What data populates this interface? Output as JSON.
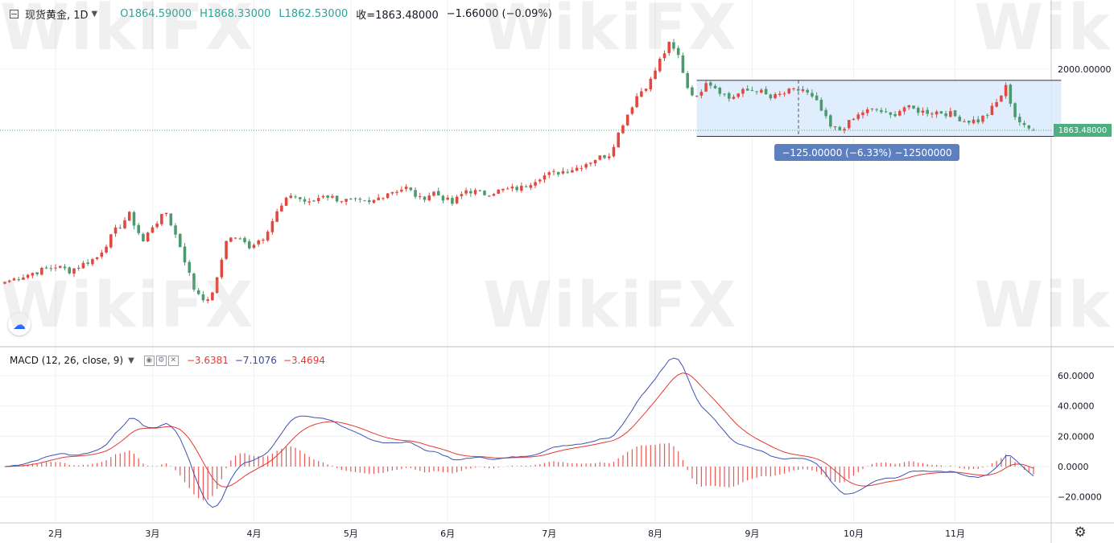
{
  "header": {
    "symbol": "现货黄金, 1D",
    "open": "O1864.59000",
    "high": "H1868.33000",
    "low": "L1862.53000",
    "close": "收=1863.48000",
    "change": "−1.66000 (−0.09%)"
  },
  "macd_header": {
    "label": "MACD (12, 26, close, 9)",
    "hist": "−3.6381",
    "macd": "−7.1076",
    "signal": "−3.4694"
  },
  "measure": {
    "label": "−125.00000 (−6.33%) −12500000",
    "box_top": 1975,
    "box_bottom": 1850,
    "from_index": 150,
    "to_index": 229
  },
  "last_price_label": "1863.48000",
  "watermark_text": "WikiFX",
  "colors": {
    "up": "#e0493f",
    "down": "#4a9a6e",
    "macd_line": "#3f51b5",
    "signal_line": "#e53935",
    "hist": "#e53935",
    "measure_fill": "#dbeafb",
    "measure_label_bg": "#5b7fbf"
  },
  "chart_data": [
    {
      "type": "candlestick",
      "title": "现货黄金",
      "x_axis_ticks": [
        {
          "label": "2月",
          "index": 11
        },
        {
          "label": "3月",
          "index": 32
        },
        {
          "label": "4月",
          "index": 54
        },
        {
          "label": "5月",
          "index": 75
        },
        {
          "label": "6月",
          "index": 96
        },
        {
          "label": "7月",
          "index": 118
        },
        {
          "label": "8月",
          "index": 141
        },
        {
          "label": "9月",
          "index": 162
        },
        {
          "label": "10月",
          "index": 184
        },
        {
          "label": "11月",
          "index": 206
        }
      ],
      "y_axis_ticks": [
        {
          "label": "2000.00000",
          "value": 2000
        }
      ],
      "last_price": 1863.48,
      "anchors": [
        [
          0,
          1525
        ],
        [
          6,
          1545
        ],
        [
          11,
          1560
        ],
        [
          14,
          1550
        ],
        [
          20,
          1580
        ],
        [
          24,
          1640
        ],
        [
          27,
          1675
        ],
        [
          30,
          1615
        ],
        [
          32,
          1650
        ],
        [
          35,
          1680
        ],
        [
          38,
          1605
        ],
        [
          41,
          1510
        ],
        [
          44,
          1480
        ],
        [
          46,
          1530
        ],
        [
          48,
          1620
        ],
        [
          50,
          1625
        ],
        [
          53,
          1605
        ],
        [
          56,
          1625
        ],
        [
          59,
          1680
        ],
        [
          62,
          1720
        ],
        [
          66,
          1700
        ],
        [
          69,
          1720
        ],
        [
          72,
          1710
        ],
        [
          75,
          1705
        ],
        [
          79,
          1700
        ],
        [
          83,
          1725
        ],
        [
          87,
          1735
        ],
        [
          90,
          1710
        ],
        [
          93,
          1725
        ],
        [
          97,
          1700
        ],
        [
          100,
          1730
        ],
        [
          104,
          1722
        ],
        [
          108,
          1730
        ],
        [
          112,
          1735
        ],
        [
          116,
          1760
        ],
        [
          120,
          1770
        ],
        [
          124,
          1780
        ],
        [
          128,
          1800
        ],
        [
          131,
          1810
        ],
        [
          134,
          1880
        ],
        [
          137,
          1940
        ],
        [
          140,
          1975
        ],
        [
          142,
          2020
        ],
        [
          144,
          2055
        ],
        [
          146,
          2030
        ],
        [
          148,
          1960
        ],
        [
          150,
          1935
        ],
        [
          152,
          1975
        ],
        [
          154,
          1960
        ],
        [
          157,
          1935
        ],
        [
          160,
          1950
        ],
        [
          163,
          1955
        ],
        [
          166,
          1935
        ],
        [
          170,
          1950
        ],
        [
          173,
          1955
        ],
        [
          176,
          1925
        ],
        [
          179,
          1870
        ],
        [
          181,
          1865
        ],
        [
          183,
          1880
        ],
        [
          186,
          1905
        ],
        [
          189,
          1910
        ],
        [
          192,
          1895
        ],
        [
          195,
          1915
        ],
        [
          199,
          1905
        ],
        [
          202,
          1905
        ],
        [
          205,
          1900
        ],
        [
          208,
          1885
        ],
        [
          211,
          1885
        ],
        [
          213,
          1900
        ],
        [
          215,
          1925
        ],
        [
          217,
          1960
        ],
        [
          219,
          1895
        ],
        [
          221,
          1870
        ],
        [
          223,
          1863.5
        ]
      ]
    },
    {
      "type": "line",
      "title": "MACD (12, 26, close, 9)",
      "y_axis_ticks": [
        {
          "label": "60.0000",
          "value": 60
        },
        {
          "label": "40.0000",
          "value": 40
        },
        {
          "label": "20.0000",
          "value": 20
        },
        {
          "label": "0.0000",
          "value": 0
        },
        {
          "label": "−20.0000",
          "value": -20
        }
      ],
      "series": [
        {
          "name": "MACD",
          "value": -7.1076
        },
        {
          "name": "Signal",
          "value": -3.4694
        },
        {
          "name": "Histogram",
          "value": -3.6381
        }
      ]
    }
  ]
}
